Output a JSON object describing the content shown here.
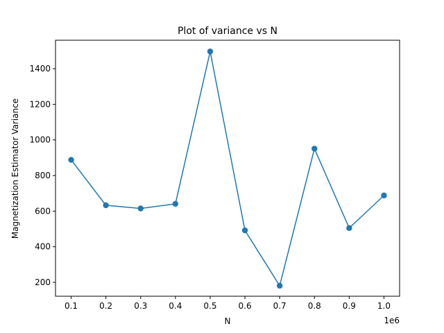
{
  "chart_data": {
    "type": "line",
    "title": "Plot of variance vs N",
    "xlabel": "N",
    "ylabel": "Magnetization Estimator Variance",
    "x_offset_label": "1e6",
    "x_ticks": [
      "0.1",
      "0.2",
      "0.3",
      "0.4",
      "0.5",
      "0.6",
      "0.7",
      "0.8",
      "0.9",
      "1.0"
    ],
    "y_ticks": [
      "200",
      "400",
      "600",
      "800",
      "1000",
      "1200",
      "1400"
    ],
    "xlim": [
      55000,
      1045000
    ],
    "ylim": [
      122,
      1560
    ],
    "grid": false,
    "series": [
      {
        "color": "#1f77b4",
        "marker": "circle",
        "x": [
          100000,
          200000,
          300000,
          400000,
          500000,
          600000,
          700000,
          800000,
          900000,
          1000000
        ],
        "y": [
          888,
          633,
          615,
          641,
          1497,
          492,
          181,
          951,
          505,
          688
        ]
      }
    ]
  }
}
